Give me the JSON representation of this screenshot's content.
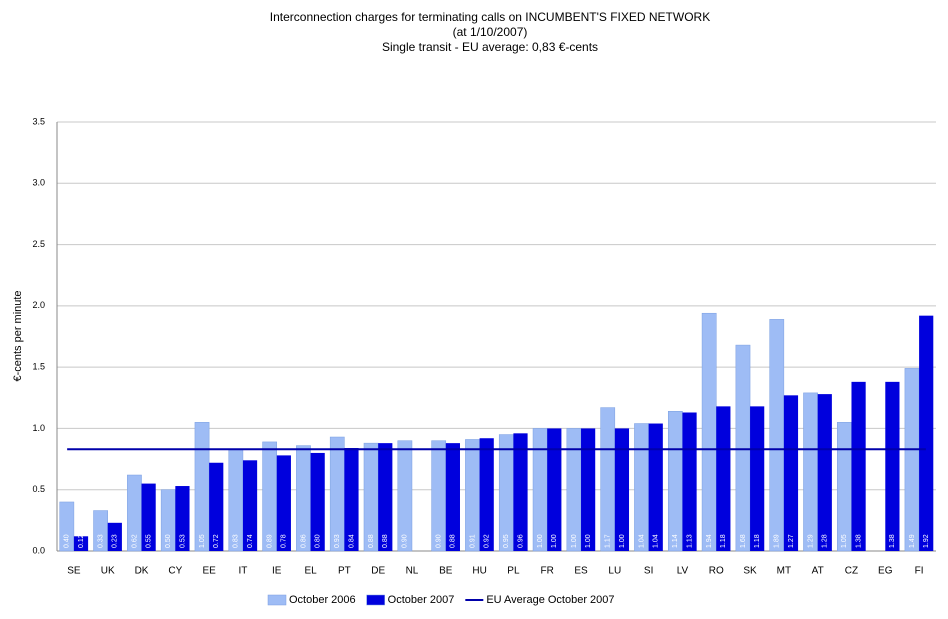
{
  "chart_data": {
    "type": "bar",
    "title": "Interconnection charges for terminating calls on INCUMBENT'S FIXED NETWORK",
    "subtitle": "(at 1/10/2007)",
    "subtitle2": "Single transit - EU average: 0,83 €-cents",
    "y_label": "€-cents per minute",
    "categories": [
      "SE",
      "UK",
      "DK",
      "CY",
      "EE",
      "IT",
      "IE",
      "EL",
      "PT",
      "DE",
      "NL",
      "BE",
      "HU",
      "PL",
      "FR",
      "ES",
      "LU",
      "SI",
      "LV",
      "RO",
      "SK",
      "MT",
      "AT",
      "CZ",
      "EG",
      "FI"
    ],
    "series": [
      {
        "name": "October 2006",
        "color": "#9ebcf5",
        "values": [
          0.4,
          0.33,
          0.62,
          0.5,
          1.05,
          0.83,
          0.89,
          0.86,
          0.93,
          0.88,
          0.9,
          0.9,
          0.91,
          0.95,
          1.0,
          1.0,
          1.17,
          1.04,
          1.14,
          1.94,
          1.68,
          1.89,
          1.29,
          1.05,
          null,
          1.49
        ],
        "value_labels": [
          "0.40",
          "0.33",
          "0.62",
          "0.50",
          "1.05",
          "0.83",
          "0.89",
          "0.86",
          "0.93",
          "0.88",
          "0.90",
          "0.90",
          "0.91",
          "0.95",
          "1.00",
          "1.00",
          "1.17",
          "1.04",
          "1.14",
          "1.94",
          "1.68",
          "1.89",
          "1.29",
          "1.05",
          null,
          "1.49"
        ]
      },
      {
        "name": "October 2007",
        "color": "#0000dd",
        "values": [
          0.12,
          0.23,
          0.55,
          0.53,
          0.72,
          0.74,
          0.78,
          0.8,
          0.84,
          0.88,
          null,
          0.88,
          0.92,
          0.96,
          1.0,
          1.0,
          1.0,
          1.04,
          1.13,
          1.18,
          1.18,
          1.27,
          1.28,
          1.38,
          1.38,
          1.92
        ],
        "value_labels": [
          "0.12",
          "0.23",
          "0.55",
          "0.53",
          "0.72",
          "0.74",
          "0.78",
          "0.80",
          "0.84",
          "0.88",
          null,
          "0.88",
          "0.92",
          "0.96",
          "1.00",
          "1.00",
          "1.00",
          "1.04",
          "1.13",
          "1.18",
          "1.18",
          "1.27",
          "1.28",
          "1.38",
          "1.38",
          "1.92"
        ]
      }
    ],
    "reference_line": {
      "name": "EU Average October 2007",
      "value": 0.83,
      "color": "#0000aa"
    },
    "ylim": [
      0,
      3.5
    ],
    "yticks": [
      {
        "value": 0,
        "label": "0.0"
      },
      {
        "value": 0.5,
        "label": "0.5"
      },
      {
        "value": 1,
        "label": "1.0"
      },
      {
        "value": 1.5,
        "label": "1.5"
      },
      {
        "value": 2,
        "label": "2.0"
      },
      {
        "value": 2.5,
        "label": "2.5"
      },
      {
        "value": 3,
        "label": "3.0"
      },
      {
        "value": 3.5,
        "label": "3.5"
      }
    ],
    "grid": true
  }
}
